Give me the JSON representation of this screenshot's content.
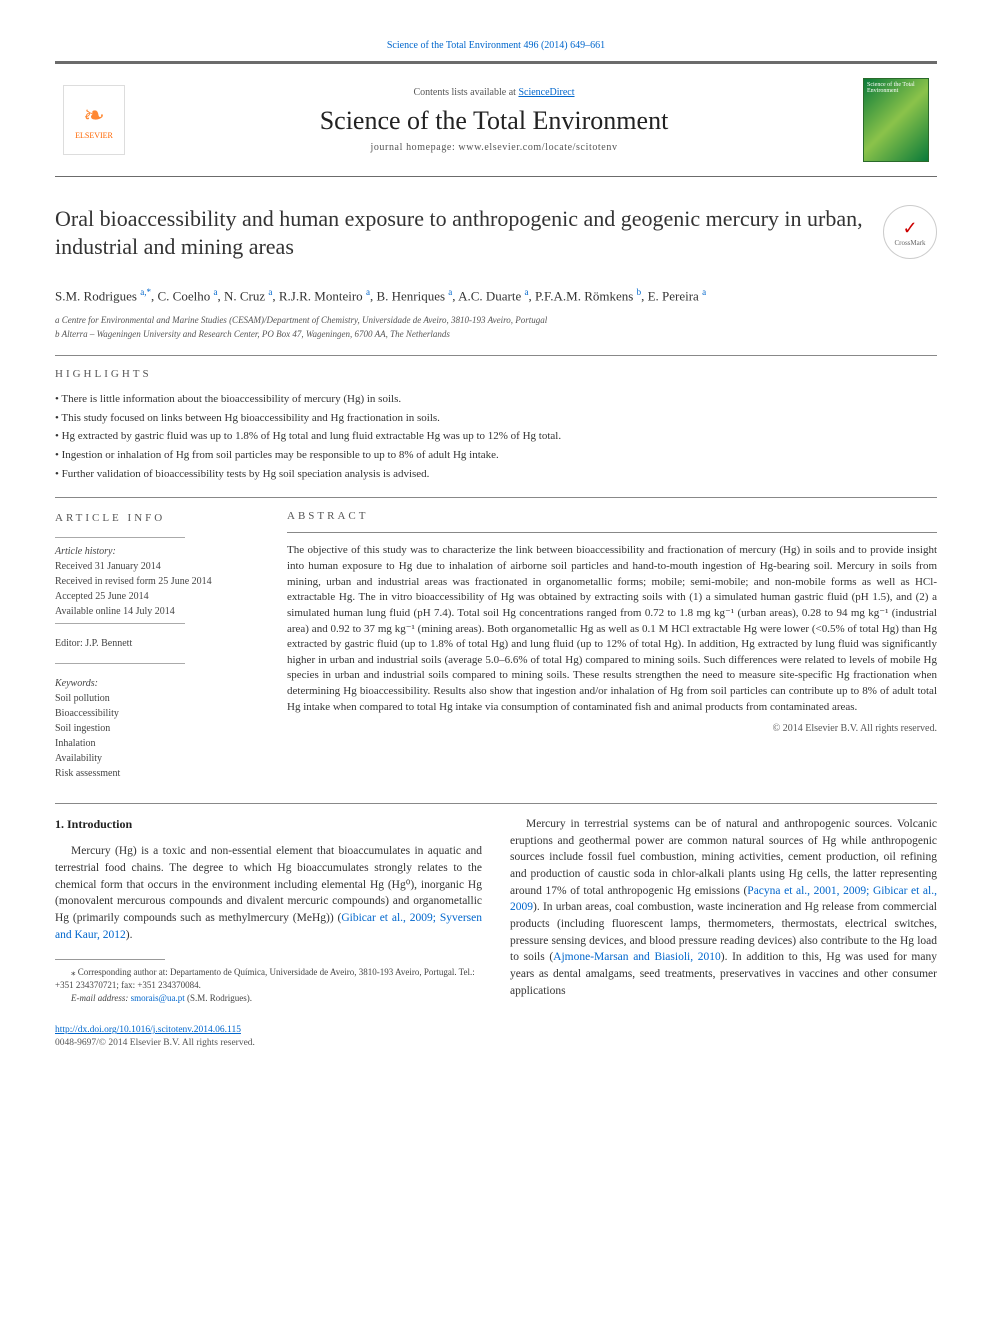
{
  "top_reference": "Science of the Total Environment 496 (2014) 649–661",
  "banner": {
    "contents_prefix": "Contents lists available at ",
    "contents_link": "ScienceDirect",
    "journal_name": "Science of the Total Environment",
    "homepage_label": "journal homepage: www.elsevier.com/locate/scitotenv",
    "publisher_label": "ELSEVIER",
    "cover_text": "Science of the Total Environment"
  },
  "crossmark_label": "CrossMark",
  "title": "Oral bioaccessibility and human exposure to anthropogenic and geogenic mercury in urban, industrial and mining areas",
  "authors_html": "S.M. Rodrigues <sup>a,*</sup>, C. Coelho <sup>a</sup>, N. Cruz <sup>a</sup>, R.J.R. Monteiro <sup>a</sup>, B. Henriques <sup>a</sup>, A.C. Duarte <sup>a</sup>, P.F.A.M. Römkens <sup>b</sup>, E. Pereira <sup>a</sup>",
  "affiliations": [
    "a Centre for Environmental and Marine Studies (CESAM)/Department of Chemistry, Universidade de Aveiro, 3810-193 Aveiro, Portugal",
    "b Alterra – Wageningen University and Research Center, PO Box 47, Wageningen, 6700 AA, The Netherlands"
  ],
  "highlights_label": "HIGHLIGHTS",
  "highlights": [
    "• There is little information about the bioaccessibility of mercury (Hg) in soils.",
    "• This study focused on links between Hg bioaccessibility and Hg fractionation in soils.",
    "• Hg extracted by gastric fluid was up to 1.8% of Hg total and lung fluid extractable Hg was up to 12% of Hg total.",
    "• Ingestion or inhalation of Hg from soil particles may be responsible to up to 8% of adult Hg intake.",
    "• Further validation of bioaccessibility tests by Hg soil speciation analysis is advised."
  ],
  "article_info": {
    "label": "ARTICLE INFO",
    "history_label": "Article history:",
    "history": [
      "Received 31 January 2014",
      "Received in revised form 25 June 2014",
      "Accepted 25 June 2014",
      "Available online 14 July 2014"
    ],
    "editor_label": "Editor: J.P. Bennett",
    "keywords_label": "Keywords:",
    "keywords": [
      "Soil pollution",
      "Bioaccessibility",
      "Soil ingestion",
      "Inhalation",
      "Availability",
      "Risk assessment"
    ]
  },
  "abstract": {
    "label": "ABSTRACT",
    "text": "The objective of this study was to characterize the link between bioaccessibility and fractionation of mercury (Hg) in soils and to provide insight into human exposure to Hg due to inhalation of airborne soil particles and hand-to-mouth ingestion of Hg-bearing soil. Mercury in soils from mining, urban and industrial areas was fractionated in organometallic forms; mobile; semi-mobile; and non-mobile forms as well as HCl-extractable Hg. The in vitro bioaccessibility of Hg was obtained by extracting soils with (1) a simulated human gastric fluid (pH 1.5), and (2) a simulated human lung fluid (pH 7.4). Total soil Hg concentrations ranged from 0.72 to 1.8 mg kg⁻¹ (urban areas), 0.28 to 94 mg kg⁻¹ (industrial area) and 0.92 to 37 mg kg⁻¹ (mining areas). Both organometallic Hg as well as 0.1 M HCl extractable Hg were lower (<0.5% of total Hg) than Hg extracted by gastric fluid (up to 1.8% of total Hg) and lung fluid (up to 12% of total Hg). In addition, Hg extracted by lung fluid was significantly higher in urban and industrial soils (average 5.0–6.6% of total Hg) compared to mining soils. Such differences were related to levels of mobile Hg species in urban and industrial soils compared to mining soils. These results strengthen the need to measure site-specific Hg fractionation when determining Hg bioaccessibility. Results also show that ingestion and/or inhalation of Hg from soil particles can contribute up to 8% of adult total Hg intake when compared to total Hg intake via consumption of contaminated fish and animal products from contaminated areas.",
    "copyright": "© 2014 Elsevier B.V. All rights reserved."
  },
  "intro": {
    "heading": "1. Introduction",
    "p1_pre": "Mercury (Hg) is a toxic and non-essential element that bioaccumulates in aquatic and terrestrial food chains. The degree to which Hg bioaccumulates strongly relates to the chemical form that occurs in the environment including elemental Hg (Hg⁰), inorganic Hg (monovalent mercurous compounds and divalent mercuric compounds) and organometallic Hg (primarily compounds such as methylmercury (MeHg)) (",
    "p1_link": "Gibicar et al., 2009; Syversen and Kaur, 2012",
    "p1_post": ").",
    "p2_a": "Mercury in terrestrial systems can be of natural and anthropogenic sources. Volcanic eruptions and geothermal power are common natural sources of Hg while anthropogenic sources include fossil fuel combustion, mining activities, cement production, oil refining and production of caustic soda in chlor-alkali plants using Hg cells, the latter representing around 17% of total anthropogenic Hg emissions (",
    "p2_link1": "Pacyna et al., 2001, 2009; Gibicar et al., 2009",
    "p2_b": "). In urban areas, coal combustion, waste incineration and Hg release from commercial products (including fluorescent lamps, thermometers, thermostats, electrical switches, pressure sensing devices, and blood pressure reading devices) also contribute to the Hg load to soils (",
    "p2_link2": "Ajmone-Marsan and Biasioli, 2010",
    "p2_c": "). In addition to this, Hg was used for many years as dental amalgams, seed treatments, preservatives in vaccines and other consumer applications"
  },
  "corresponding": {
    "text": "⁎ Corresponding author at: Departamento de Química, Universidade de Aveiro, 3810-193 Aveiro, Portugal. Tel.: +351 234370721; fax: +351 234370084.",
    "email_label": "E-mail address: ",
    "email": "smorais@ua.pt",
    "email_suffix": " (S.M. Rodrigues)."
  },
  "footer": {
    "doi": "http://dx.doi.org/10.1016/j.scitotenv.2014.06.115",
    "issn_line": "0048-9697/© 2014 Elsevier B.V. All rights reserved."
  },
  "colors": {
    "link": "#0066cc",
    "text": "#333333",
    "rule": "#888888",
    "elsevier_orange": "#ff6600"
  }
}
